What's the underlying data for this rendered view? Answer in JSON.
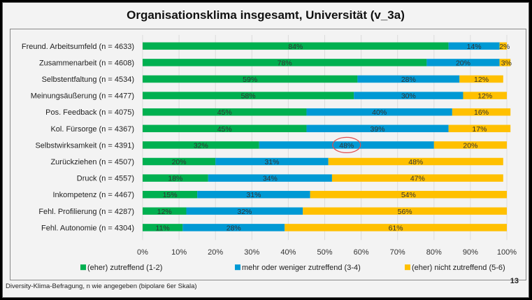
{
  "slide": {
    "footer": "Diversity-Klima-Befragung, n wie angegeben (bipolare 6er Skala)",
    "page_number": "13"
  },
  "colors": {
    "green": "#00b050",
    "blue": "#0099d4",
    "yellow": "#ffc000",
    "highlight_circle": "#e05050"
  },
  "chart_data": {
    "type": "bar",
    "orientation": "horizontal",
    "stacked": true,
    "title": "Organisationsklima insgesamt, Universität (v_3a)",
    "xlabel": "",
    "ylabel": "",
    "xlim": [
      0,
      100
    ],
    "grid": true,
    "legend_position": "bottom",
    "x_ticks": [
      "0%",
      "10%",
      "20%",
      "30%",
      "40%",
      "50%",
      "60%",
      "70%",
      "80%",
      "90%",
      "100%"
    ],
    "categories": [
      "Freund. Arbeitsumfeld (n = 4633)",
      "Zusammenarbeit (n = 4608)",
      "Selbstentfaltung (n = 4534)",
      "Meinungsäußerung (n = 4477)",
      "Pos. Feedback (n = 4075)",
      "Kol. Fürsorge (n = 4367)",
      "Selbstwirksamkeit (n = 4391)",
      "Zurückziehen (n = 4507)",
      "Druck (n = 4557)",
      "Inkompetenz (n = 4467)",
      "Fehl. Profilierung (n = 4287)",
      "Fehl. Autonomie (n = 4304)"
    ],
    "series": [
      {
        "name": "(eher) zutreffend (1-2)",
        "color": "#00b050",
        "values": [
          84,
          78,
          59,
          58,
          45,
          45,
          32,
          20,
          18,
          15,
          12,
          11
        ],
        "labels": [
          "84%",
          "78%",
          "59%",
          "58%",
          "45%",
          "45%",
          "32%",
          "20%",
          "18%",
          "15%",
          "12%",
          "11%"
        ]
      },
      {
        "name": "mehr oder weniger zutreffend (3-4)",
        "color": "#0099d4",
        "values": [
          14,
          20,
          28,
          30,
          40,
          39,
          48,
          31,
          34,
          31,
          32,
          28
        ],
        "labels": [
          "14%",
          "20%",
          "28%",
          "30%",
          "40%",
          "39%",
          "48%",
          "31%",
          "34%",
          "31%",
          "32%",
          "28%"
        ]
      },
      {
        "name": "(eher) nicht zutreffend (5-6)",
        "color": "#ffc000",
        "values": [
          2,
          3,
          12,
          12,
          16,
          17,
          20,
          48,
          47,
          54,
          56,
          61
        ],
        "labels": [
          "2%",
          "3%",
          "12%",
          "12%",
          "16%",
          "17%",
          "20%",
          "48%",
          "47%",
          "54%",
          "56%",
          "61%"
        ]
      }
    ],
    "annotations": [
      {
        "type": "circle",
        "category_index": 6,
        "series_index": 1,
        "text": "48%"
      }
    ]
  }
}
